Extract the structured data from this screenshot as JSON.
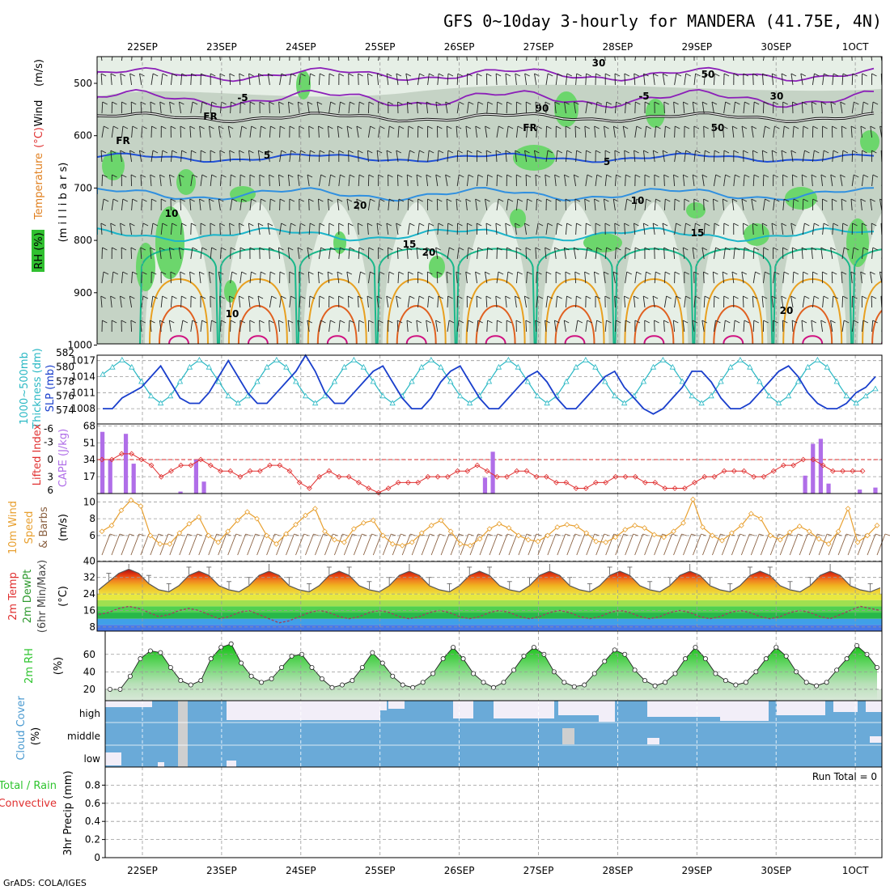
{
  "title": "GFS 0~10day 3-hourly for MANDERA (41.75E, 4N)",
  "credit": "GrADS: COLA/IGES",
  "dates": [
    "22SEP",
    "23SEP",
    "24SEP",
    "25SEP",
    "26SEP",
    "27SEP",
    "28SEP",
    "29SEP",
    "30SEP",
    "1OCT"
  ],
  "colors": {
    "grid": "#999999",
    "rh_light": "#e6efe6",
    "rh_mid": "#c5d3c5",
    "rh_green": "#6cd66c",
    "temp_purple": "#8b1fb8",
    "temp_blue": "#1f4fd6",
    "temp_cyan": "#1ab4c9",
    "temp_green": "#19b88a",
    "temp_orange": "#e8a020",
    "slp": "#1a3fcc",
    "thickness": "#2ab8c4",
    "cape": "#b06ee8",
    "lifted": "#e03030",
    "wind": "#e8a030",
    "barb": "#8a6040",
    "rh2m": "#2ec42e",
    "cloud": "#6aaad8"
  },
  "panels": {
    "profile": {
      "label_wind": "Wind",
      "label_wind_units": "(m/s)",
      "label_temp": "Temperature",
      "label_temp_units": "(°C)",
      "label_rh": "RH (%)",
      "label_pressure": "(m i l l i b a r s)",
      "pressure_ticks": [
        "500",
        "600",
        "700",
        "800",
        "900",
        "1000"
      ],
      "contour_labels": [
        "-5",
        "FR",
        "5",
        "10",
        "15",
        "20",
        "30",
        "50",
        "90",
        "-5",
        "FR",
        "5",
        "10",
        "15",
        "20",
        "30",
        "50",
        "FR",
        "10",
        "20"
      ]
    },
    "slp": {
      "label_slp": "SLP (mb)",
      "label_thick": "1000~500mb",
      "label_thick2": "Thickness (dm)",
      "slp_ticks": [
        "1017",
        "1014",
        "1011",
        "1008"
      ],
      "thick_ticks": [
        "582",
        "580",
        "578",
        "576",
        "574"
      ]
    },
    "cape": {
      "label_li": "Lifted Index",
      "label_cape": "CAPE (J/kg)",
      "li_ticks": [
        "-6",
        "-3",
        "0",
        "3",
        "6"
      ],
      "cape_ticks": [
        "68",
        "51",
        "34",
        "17"
      ]
    },
    "wind10": {
      "label_a": "10m Wind",
      "label_b": "Speed",
      "label_c": "& Barbs",
      "label_d": "(m/s)",
      "ticks": [
        "10",
        "8",
        "6"
      ]
    },
    "temp2m": {
      "label_a": "2m Temp",
      "label_b": "2m DewPt",
      "label_c": "(6hr Min/Max)",
      "label_d": "(°C)",
      "ticks": [
        "40",
        "32",
        "24",
        "16",
        "8"
      ]
    },
    "rh2m": {
      "label_a": "2m RH",
      "label_b": "(%)",
      "ticks": [
        "60",
        "40",
        "20"
      ]
    },
    "cloud": {
      "label_a": "Cloud Cover",
      "label_b": "(%)",
      "levels": [
        "high",
        "middle",
        "low"
      ]
    },
    "precip": {
      "label_a": "Total / Rain",
      "label_b": "Convective",
      "label_c": "3hr Precip (mm)",
      "ticks": [
        "0.8",
        "0.6",
        "0.4",
        "0.2",
        "0"
      ],
      "run_total": "Run Total = 0"
    }
  },
  "chart_data": [
    {
      "type": "line",
      "title": "SLP (mb)",
      "x": "3-hourly steps from 21SEP 12Z",
      "series": [
        {
          "name": "SLP",
          "values": [
            1008,
            1008,
            1010,
            1011,
            1012,
            1014,
            1016,
            1013,
            1010,
            1009,
            1009,
            1011,
            1014,
            1017,
            1014,
            1011,
            1009,
            1009,
            1011,
            1013,
            1015,
            1018,
            1015,
            1011,
            1009,
            1009,
            1011,
            1013,
            1015,
            1016,
            1013,
            1010,
            1008,
            1008,
            1010,
            1013,
            1015,
            1016,
            1013,
            1010,
            1008,
            1008,
            1010,
            1012,
            1014,
            1015,
            1013,
            1010,
            1008,
            1008,
            1010,
            1012,
            1014,
            1015,
            1012,
            1010,
            1008,
            1007,
            1008,
            1010,
            1012,
            1015,
            1015,
            1013,
            1010,
            1008,
            1008,
            1009,
            1011,
            1013,
            1015,
            1016,
            1014,
            1011,
            1009,
            1008,
            1008,
            1009,
            1011,
            1012,
            1014
          ]
        }
      ]
    },
    {
      "type": "line",
      "title": "1000~500mb Thickness (dm)",
      "series": [
        {
          "name": "Thickness",
          "values": [
            579,
            580,
            581,
            580,
            578,
            576,
            575,
            576,
            578,
            580,
            581,
            580,
            578,
            576,
            575,
            576,
            578,
            580,
            581,
            580,
            578,
            576,
            575,
            576,
            578,
            580,
            581,
            580,
            578,
            576,
            575,
            576,
            578,
            580,
            581,
            580,
            578,
            576,
            575,
            576,
            578,
            580,
            581,
            580,
            578,
            576,
            575,
            576,
            578,
            580,
            581,
            580,
            578,
            576,
            575,
            576,
            578,
            580,
            581,
            580,
            578,
            576,
            575,
            576,
            578,
            580,
            581,
            580,
            578,
            576,
            575,
            576,
            578,
            580,
            581,
            580,
            578,
            576,
            575,
            576,
            577
          ]
        }
      ]
    },
    {
      "type": "bar",
      "title": "CAPE (J/kg)",
      "series": [
        {
          "name": "CAPE",
          "values": [
            62,
            34,
            0,
            60,
            30,
            0,
            0,
            0,
            0,
            0,
            2,
            0,
            34,
            12,
            0,
            0,
            0,
            0,
            0,
            0,
            0,
            0,
            0,
            0,
            0,
            0,
            0,
            0,
            0,
            0,
            0,
            0,
            0,
            0,
            0,
            0,
            0,
            0,
            0,
            0,
            0,
            0,
            0,
            0,
            0,
            0,
            0,
            0,
            0,
            16,
            42,
            0,
            0,
            0,
            0,
            0,
            0,
            0,
            0,
            0,
            0,
            0,
            0,
            0,
            0,
            0,
            0,
            0,
            0,
            0,
            0,
            0,
            0,
            0,
            0,
            0,
            0,
            0,
            0,
            0,
            0,
            0,
            0,
            0,
            0,
            0,
            0,
            0,
            0,
            0,
            18,
            50,
            55,
            10,
            0,
            0,
            0,
            4,
            0,
            6
          ]
        }
      ]
    },
    {
      "type": "line",
      "title": "Lifted Index",
      "series": [
        {
          "name": "Lifted Index",
          "values": [
            0,
            0,
            -1,
            -1,
            0,
            1,
            3,
            2,
            1,
            1,
            0,
            1,
            2,
            2,
            3,
            2,
            2,
            1,
            1,
            2,
            4,
            5,
            3,
            2,
            3,
            3,
            4,
            5,
            6,
            5,
            4,
            4,
            4,
            3,
            3,
            3,
            2,
            2,
            1,
            2,
            3,
            3,
            2,
            2,
            3,
            3,
            4,
            4,
            5,
            5,
            4,
            4,
            3,
            3,
            3,
            4,
            4,
            5,
            5,
            5,
            4,
            3,
            3,
            2,
            2,
            2,
            3,
            3,
            2,
            1,
            1,
            0,
            0,
            1,
            2,
            2,
            2,
            2
          ]
        }
      ]
    },
    {
      "type": "line",
      "title": "10m Wind Speed (m/s)",
      "series": [
        {
          "name": "Wind Speed",
          "values": [
            6.5,
            7.2,
            9.0,
            10.2,
            9.5,
            6.0,
            5.0,
            5.0,
            6.3,
            7.4,
            8.2,
            6.0,
            5.2,
            6.5,
            7.8,
            8.8,
            8.0,
            6.0,
            5.0,
            6.2,
            7.3,
            8.4,
            9.2,
            6.5,
            5.5,
            5.2,
            6.8,
            7.5,
            7.8,
            6.0,
            5.0,
            4.8,
            5.2,
            6.3,
            7.2,
            7.8,
            6.5,
            5.0,
            4.8,
            5.6,
            6.8,
            7.4,
            6.9,
            6.0,
            5.5,
            5.3,
            6.0,
            7.0,
            7.3,
            7.1,
            6.3,
            5.3,
            5.2,
            5.8,
            6.7,
            7.2,
            6.9,
            6.1,
            5.8,
            6.5,
            7.5,
            10.3,
            7.0,
            6.0,
            5.4,
            6.3,
            7.2,
            8.6,
            8.0,
            6.0,
            5.5,
            6.4,
            7.1,
            6.5,
            5.6,
            5.0,
            6.5,
            9.2,
            5.2,
            6.0,
            7.2
          ]
        }
      ]
    },
    {
      "type": "area",
      "title": "2m Temp (°C)",
      "series": [
        {
          "name": "2m Temp",
          "values": [
            26,
            30,
            34,
            36,
            34,
            29,
            26,
            25,
            28,
            33,
            35,
            33,
            28,
            26,
            25,
            28,
            33,
            35,
            33,
            28,
            26,
            25,
            28,
            33,
            35,
            33,
            28,
            26,
            25,
            28,
            33,
            35,
            33,
            28,
            26,
            25,
            28,
            33,
            35,
            33,
            28,
            26,
            25,
            28,
            33,
            35,
            33,
            28,
            26,
            25,
            28,
            33,
            35,
            33,
            28,
            26,
            25,
            28,
            33,
            35,
            33,
            28,
            26,
            25,
            28,
            33,
            35,
            33,
            28,
            26,
            25,
            28,
            33,
            35,
            33,
            28,
            26,
            25,
            27
          ]
        },
        {
          "name": "2m DewPt",
          "values": [
            14,
            15,
            17,
            18,
            17,
            15,
            13,
            14,
            16,
            17,
            16,
            14,
            12,
            13,
            15,
            16,
            14,
            12,
            10,
            11,
            13,
            15,
            16,
            15,
            13,
            12,
            13,
            15,
            16,
            15,
            13,
            12,
            13,
            15,
            16,
            15,
            13,
            12,
            13,
            15,
            16,
            15,
            13,
            12,
            13,
            15,
            16,
            15,
            13,
            12,
            13,
            15,
            16,
            15,
            13,
            12,
            13,
            15,
            16,
            15,
            13,
            12,
            13,
            15,
            16,
            15,
            13,
            12,
            13,
            15,
            16,
            15,
            13,
            12,
            14,
            16,
            18,
            17,
            16
          ]
        }
      ]
    },
    {
      "type": "area",
      "title": "2m RH (%)",
      "series": [
        {
          "name": "2m RH",
          "values": [
            20,
            20,
            35,
            55,
            64,
            62,
            45,
            30,
            25,
            30,
            55,
            68,
            72,
            50,
            35,
            28,
            32,
            45,
            58,
            60,
            45,
            32,
            22,
            25,
            30,
            45,
            62,
            50,
            35,
            25,
            22,
            28,
            38,
            55,
            68,
            55,
            38,
            28,
            22,
            28,
            42,
            58,
            68,
            60,
            40,
            28,
            23,
            25,
            38,
            52,
            65,
            60,
            42,
            30,
            24,
            28,
            38,
            55,
            68,
            55,
            38,
            30,
            25,
            28,
            40,
            55,
            68,
            58,
            40,
            28,
            24,
            28,
            42,
            55,
            70,
            60,
            45
          ]
        }
      ]
    }
  ]
}
